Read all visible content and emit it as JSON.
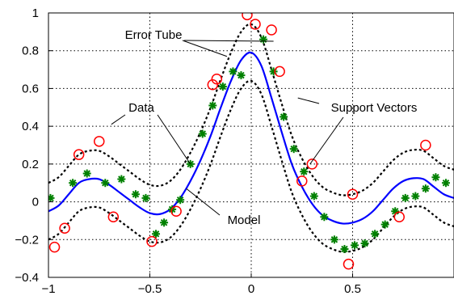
{
  "chart_data": {
    "type": "line",
    "title": "",
    "xlabel": "",
    "ylabel": "",
    "xlim": [
      -1,
      1
    ],
    "ylim": [
      -0.4,
      1
    ],
    "grid": true,
    "x_ticks": [
      -1,
      -0.5,
      0,
      0.5
    ],
    "x_tick_labels": [
      "−1",
      "−0.5",
      "0",
      "0.5"
    ],
    "y_ticks": [
      -0.4,
      -0.2,
      0,
      0.2,
      0.4,
      0.6,
      0.8,
      1
    ],
    "y_tick_labels": [
      "−0.4",
      "−0.2",
      "0",
      "0.2",
      "0.4",
      "0.6",
      "0.8",
      "1"
    ],
    "tube_width": 0.15,
    "colors": {
      "model": "#0000ff",
      "tube": "#000000",
      "data": "#008000",
      "support": "#ff0000",
      "grid": "#000000"
    },
    "series": [
      {
        "name": "",
        "role": "model",
        "x": [
          -1,
          -0.95,
          -0.9,
          -0.85,
          -0.8,
          -0.75,
          -0.7,
          -0.65,
          -0.6,
          -0.55,
          -0.5,
          -0.45,
          -0.4,
          -0.35,
          -0.3,
          -0.25,
          -0.2,
          -0.15,
          -0.1,
          -0.05,
          0,
          0.05,
          0.1,
          0.15,
          0.2,
          0.25,
          0.3,
          0.35,
          0.4,
          0.45,
          0.5,
          0.55,
          0.6,
          0.65,
          0.7,
          0.75,
          0.8,
          0.85,
          0.9,
          0.95,
          1
        ],
        "y": [
          -0.05,
          -0.02,
          0.04,
          0.1,
          0.12,
          0.12,
          0.09,
          0.05,
          0.01,
          -0.03,
          -0.06,
          -0.065,
          -0.04,
          0.02,
          0.11,
          0.22,
          0.35,
          0.5,
          0.64,
          0.75,
          0.79,
          0.72,
          0.55,
          0.37,
          0.2,
          0.08,
          -0.01,
          -0.07,
          -0.1,
          -0.115,
          -0.11,
          -0.09,
          -0.05,
          0.01,
          0.07,
          0.11,
          0.125,
          0.12,
          0.08,
          0.04,
          0.02
        ]
      },
      {
        "name": "",
        "role": "data",
        "x": [
          -0.99,
          -0.88,
          -0.81,
          -0.72,
          -0.64,
          -0.57,
          -0.52,
          -0.47,
          -0.43,
          -0.39,
          -0.35,
          -0.3,
          -0.24,
          -0.19,
          -0.14,
          -0.09,
          -0.05,
          0.06,
          0.11,
          0.16,
          0.21,
          0.26,
          0.31,
          0.36,
          0.41,
          0.46,
          0.51,
          0.56,
          0.61,
          0.66,
          0.71,
          0.76,
          0.81,
          0.86,
          0.91,
          0.96
        ],
        "y": [
          0.02,
          0.1,
          0.15,
          0.1,
          0.12,
          0.04,
          0.02,
          -0.17,
          -0.11,
          -0.04,
          0.01,
          0.2,
          0.36,
          0.51,
          0.61,
          0.69,
          0.67,
          0.86,
          0.69,
          0.45,
          0.28,
          0.16,
          0.03,
          -0.08,
          -0.2,
          -0.25,
          -0.23,
          -0.22,
          -0.17,
          -0.12,
          -0.05,
          0.02,
          0.03,
          0.07,
          0.13,
          0.1
        ]
      },
      {
        "name": "",
        "role": "support_vectors",
        "x": [
          -0.97,
          -0.92,
          -0.85,
          -0.75,
          -0.68,
          -0.49,
          -0.37,
          -0.19,
          -0.17,
          -0.02,
          0.02,
          0.1,
          0.14,
          0.25,
          0.3,
          0.48,
          0.5,
          0.73,
          0.86
        ],
        "y": [
          -0.24,
          -0.14,
          0.25,
          0.32,
          -0.08,
          -0.21,
          -0.05,
          0.62,
          0.65,
          0.99,
          0.94,
          0.91,
          0.69,
          0.11,
          0.2,
          -0.33,
          0.04,
          -0.08,
          0.3
        ]
      }
    ],
    "annotations": [
      {
        "label": "Error Tube",
        "targets": [
          [
            -0.12,
            0.77
          ],
          [
            0.11,
            0.85
          ]
        ]
      },
      {
        "label": "Data",
        "targets": [
          [
            -0.69,
            0.41
          ],
          [
            -0.3,
            0.2
          ]
        ]
      },
      {
        "label": "Model",
        "targets": [
          [
            -0.32,
            0.07
          ]
        ]
      },
      {
        "label": "Support Vectors",
        "targets": [
          [
            0.23,
            0.55
          ],
          [
            0.29,
            0.2
          ]
        ]
      }
    ]
  }
}
